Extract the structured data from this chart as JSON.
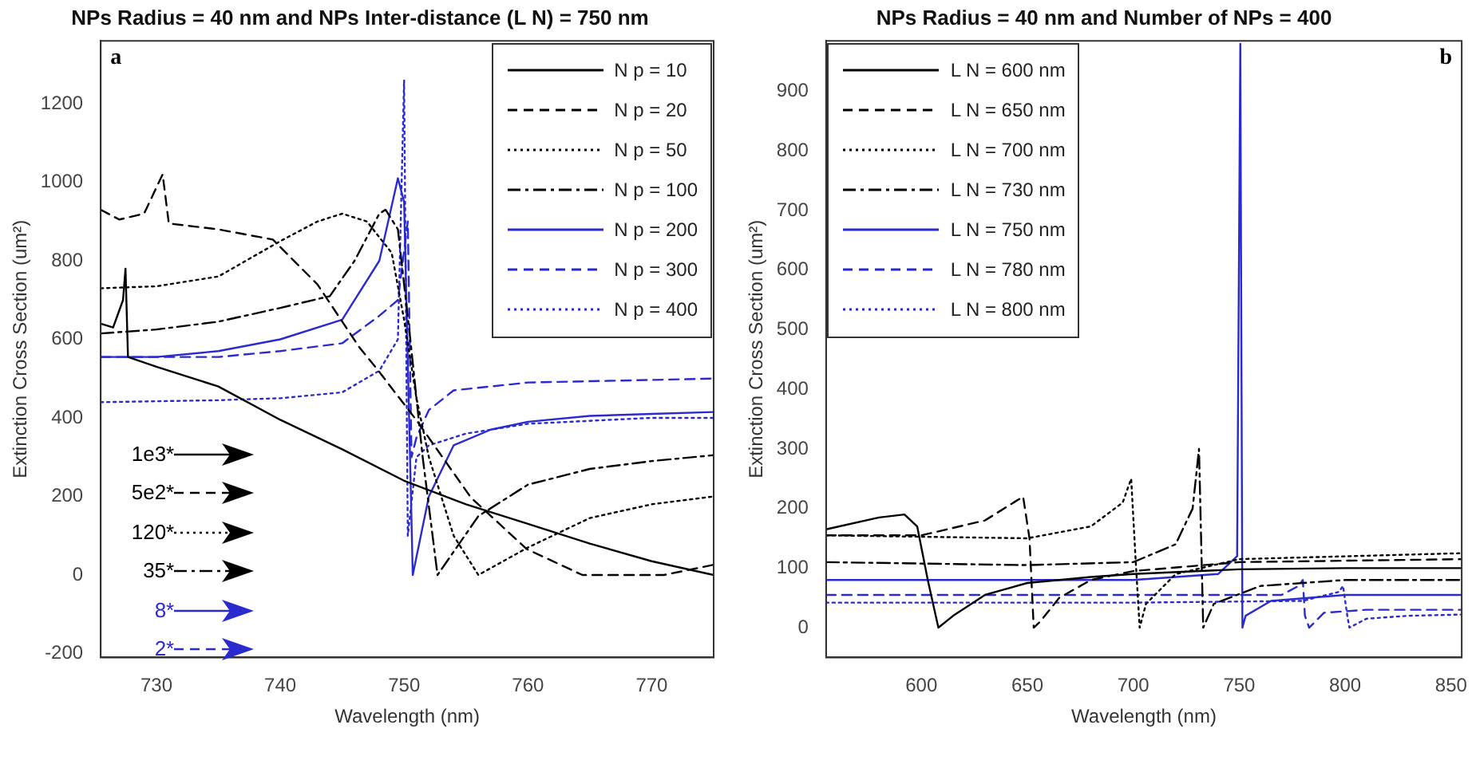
{
  "chart_data": [
    {
      "type": "line",
      "title": "NPs Radius = 40 nm and NPs Inter-distance (L N) = 750 nm",
      "xlabel": "Wavelength (nm)",
      "ylabel": "Extinction Cross Section (um²)",
      "xlim": [
        725.5,
        775
      ],
      "ylim": [
        -210,
        1360
      ],
      "xticks": [
        730,
        740,
        750,
        760,
        770
      ],
      "yticks": [
        -200,
        0,
        200,
        400,
        600,
        800,
        1000,
        1200
      ],
      "grid": false,
      "legend": "top right",
      "marker": "none",
      "annotations": [
        "a",
        "1e3*",
        "5e2*",
        "120*",
        "35*",
        "8*",
        "2*"
      ],
      "series": [
        {
          "name": "N p = 10",
          "color": "#000000",
          "line_style": "solid",
          "x": [
            725.5,
            726.5,
            727.3,
            727.5,
            727.7,
            730,
            735,
            740,
            745,
            750,
            755,
            760,
            765,
            770,
            775
          ],
          "values": [
            640,
            630,
            700,
            780,
            555,
            530,
            480,
            395,
            320,
            240,
            180,
            130,
            80,
            35,
            0
          ]
        },
        {
          "name": "N p = 20",
          "color": "#000000",
          "line_style": "dashed",
          "x": [
            725.5,
            727,
            729,
            730.5,
            731,
            735,
            739.4,
            743,
            746.4,
            747.8,
            751,
            755.4,
            759.9,
            764.4,
            771,
            775
          ],
          "values": [
            930,
            905,
            920,
            1020,
            895,
            880,
            854,
            740,
            579,
            525,
            394,
            197,
            66,
            0,
            0,
            26
          ]
        },
        {
          "name": "N p = 50",
          "color": "#000000",
          "line_style": "dotted",
          "x": [
            725.5,
            730,
            735,
            740,
            743,
            745,
            747,
            749,
            750,
            751,
            752,
            754,
            756,
            760,
            765,
            770,
            775
          ],
          "values": [
            730,
            735,
            760,
            850,
            900,
            920,
            900,
            820,
            650,
            450,
            300,
            100,
            0,
            70,
            145,
            180,
            200
          ]
        },
        {
          "name": "N p = 100",
          "color": "#000000",
          "line_style": "dashdot",
          "x": [
            725.5,
            730,
            735,
            740,
            744,
            746,
            748,
            748.5,
            749.5,
            750.5,
            751.5,
            752.7,
            756,
            760,
            765,
            770,
            775
          ],
          "values": [
            615,
            625,
            645,
            680,
            710,
            800,
            920,
            930,
            880,
            600,
            300,
            0,
            150,
            230,
            270,
            290,
            305
          ]
        },
        {
          "name": "N p = 200",
          "color": "#2a2ad0",
          "line_style": "solid",
          "x": [
            725.5,
            730,
            735,
            740,
            745,
            748,
            749.5,
            750,
            750.7,
            752,
            754,
            757,
            760,
            765,
            770,
            775
          ],
          "values": [
            555,
            555,
            570,
            600,
            650,
            800,
            1010,
            950,
            0,
            200,
            330,
            370,
            390,
            405,
            410,
            415
          ]
        },
        {
          "name": "N p = 300",
          "color": "#2a2ad0",
          "line_style": "dashed",
          "x": [
            725.5,
            735,
            740,
            745,
            748,
            749.5,
            750.3,
            750.6,
            751,
            752,
            754,
            760,
            775
          ],
          "values": [
            555,
            555,
            570,
            590,
            660,
            700,
            900,
            300,
            350,
            420,
            470,
            490,
            500
          ]
        },
        {
          "name": "N p = 400",
          "color": "#2a2ad0",
          "line_style": "dotted",
          "x": [
            725.5,
            735,
            740,
            745,
            748,
            749.5,
            750,
            750.3,
            751,
            752,
            755,
            760,
            770,
            775
          ],
          "values": [
            440,
            445,
            450,
            465,
            520,
            600,
            1260,
            100,
            300,
            330,
            360,
            385,
            400,
            400
          ]
        }
      ]
    },
    {
      "type": "line",
      "title": "NPs Radius = 40 nm and Number of NPs = 400",
      "xlabel": "Wavelength (nm)",
      "ylabel": "Extinction Cross Section (um²)",
      "xlim": [
        555,
        855
      ],
      "ylim": [
        -50,
        985
      ],
      "xticks": [
        600,
        650,
        700,
        750,
        800,
        850
      ],
      "yticks": [
        0,
        100,
        200,
        300,
        400,
        500,
        600,
        700,
        800,
        900
      ],
      "grid": false,
      "legend": "top left",
      "marker": "none",
      "annotations": [
        "b"
      ],
      "series": [
        {
          "name": "L N = 600 nm",
          "color": "#000000",
          "line_style": "solid",
          "x": [
            555,
            580,
            592,
            598,
            603,
            608,
            615,
            630,
            650,
            680,
            700,
            750,
            800,
            855
          ],
          "values": [
            165,
            185,
            190,
            170,
            80,
            0,
            20,
            55,
            75,
            85,
            90,
            98,
            100,
            100
          ]
        },
        {
          "name": "L N = 650 nm",
          "color": "#000000",
          "line_style": "dashed",
          "x": [
            555,
            600,
            630,
            648,
            651,
            653,
            656,
            665,
            680,
            700,
            750,
            855
          ],
          "values": [
            155,
            155,
            180,
            220,
            150,
            0,
            10,
            50,
            80,
            95,
            110,
            115
          ]
        },
        {
          "name": "L N = 700 nm",
          "color": "#000000",
          "line_style": "dotted",
          "x": [
            555,
            650,
            680,
            695,
            699,
            701,
            703,
            706,
            720,
            750,
            855
          ],
          "values": [
            155,
            150,
            170,
            210,
            250,
            120,
            0,
            40,
            90,
            115,
            125
          ]
        },
        {
          "name": "L N = 730 nm",
          "color": "#000000",
          "line_style": "dashdot",
          "x": [
            555,
            650,
            700,
            720,
            728,
            731,
            732,
            733,
            738,
            760,
            800,
            855
          ],
          "values": [
            110,
            105,
            110,
            140,
            200,
            300,
            150,
            0,
            40,
            70,
            80,
            80
          ]
        },
        {
          "name": "L N = 750 nm",
          "color": "#2a2ad0",
          "line_style": "solid",
          "x": [
            555,
            650,
            700,
            740,
            749,
            750.5,
            751.5,
            753,
            765,
            800,
            855
          ],
          "values": [
            80,
            80,
            80,
            90,
            120,
            980,
            0,
            20,
            45,
            55,
            55
          ]
        },
        {
          "name": "L N = 780 nm",
          "color": "#2a2ad0",
          "line_style": "dashed",
          "x": [
            555,
            700,
            770,
            778,
            780,
            781,
            783,
            790,
            810,
            855
          ],
          "values": [
            55,
            55,
            55,
            70,
            80,
            20,
            0,
            25,
            30,
            30
          ]
        },
        {
          "name": "L N = 800 nm",
          "color": "#2a2ad0",
          "line_style": "dotted",
          "x": [
            555,
            700,
            780,
            797,
            799,
            801,
            802,
            810,
            830,
            855
          ],
          "values": [
            42,
            42,
            45,
            60,
            70,
            20,
            0,
            15,
            20,
            22
          ]
        }
      ]
    }
  ]
}
